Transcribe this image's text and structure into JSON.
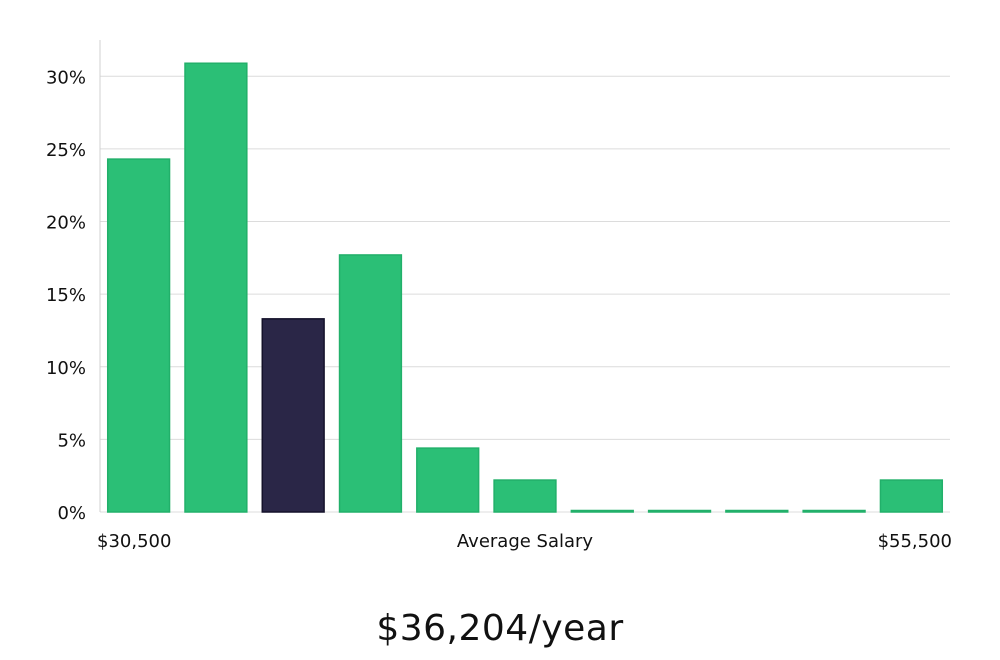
{
  "chart_data": {
    "type": "bar",
    "title": "",
    "xlabel": "Average Salary",
    "ylabel": "",
    "x_range_labels": {
      "min": "$30,500",
      "max": "$55,500"
    },
    "ylim": [
      0,
      32.5
    ],
    "y_ticks": [
      0,
      5,
      10,
      15,
      20,
      25,
      30
    ],
    "y_tick_labels": [
      "0%",
      "5%",
      "10%",
      "15%",
      "20%",
      "25%",
      "30%"
    ],
    "grid": true,
    "bins": 11,
    "values": [
      24.3,
      30.9,
      13.3,
      17.7,
      4.4,
      2.2,
      0,
      0,
      0,
      0,
      2.2
    ],
    "highlight_index": 2,
    "colors": {
      "bar": "#2bbf76",
      "bar_stroke": "#22b06a",
      "highlight": "#2a2647",
      "grid": "#dcdcdc",
      "axis": "#d0d0d0"
    }
  },
  "summary": {
    "salary_text": "$36,204/year"
  }
}
